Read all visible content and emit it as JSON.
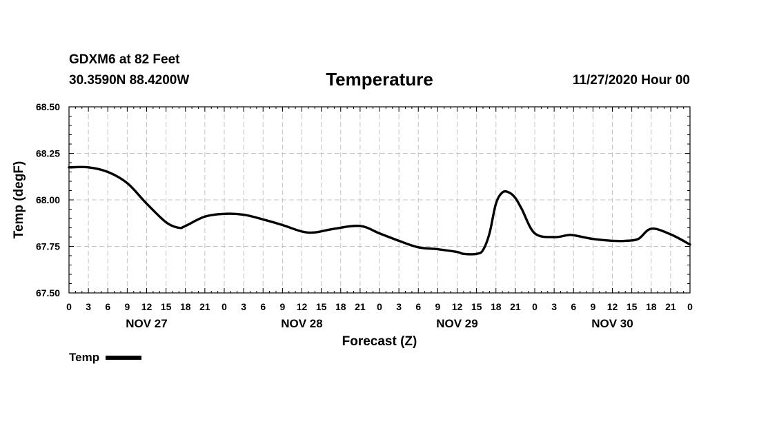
{
  "header": {
    "station": "GDXM6 at 82 Feet",
    "coords": "30.3590N 88.4200W",
    "title": "Temperature",
    "datetime": "11/27/2020 Hour 00"
  },
  "legend": {
    "label": "Temp",
    "color": "#000000"
  },
  "chart_data": {
    "type": "line",
    "title": "Temperature",
    "xlabel": "Forecast (Z)",
    "ylabel": "Temp (degF)",
    "ylim": [
      67.5,
      68.5
    ],
    "yticks": [
      "67.50",
      "67.75",
      "68.00",
      "68.25",
      "68.50"
    ],
    "ytick_values": [
      67.5,
      67.75,
      68.0,
      68.25,
      68.5
    ],
    "xlim_hours": [
      0,
      96
    ],
    "xticks": [
      "0",
      "3",
      "6",
      "9",
      "12",
      "15",
      "18",
      "21",
      "0",
      "3",
      "6",
      "9",
      "12",
      "15",
      "18",
      "21",
      "0",
      "3",
      "6",
      "9",
      "12",
      "15",
      "18",
      "21",
      "0",
      "3",
      "6",
      "9",
      "12",
      "15",
      "18",
      "21",
      "0"
    ],
    "day_labels": [
      {
        "label": "NOV 27",
        "hour": 12
      },
      {
        "label": "NOV 28",
        "hour": 36
      },
      {
        "label": "NOV 29",
        "hour": 60
      },
      {
        "label": "NOV 30",
        "hour": 84
      }
    ],
    "grid": true,
    "series": [
      {
        "name": "Temp",
        "color": "#000000",
        "x": [
          0,
          3,
          6,
          9,
          12,
          15,
          17,
          18,
          21,
          24,
          27,
          30,
          33,
          36,
          38,
          41,
          45,
          48,
          51,
          54,
          57,
          60,
          61,
          63,
          64,
          65,
          66,
          67,
          68,
          69,
          70,
          72,
          75,
          77,
          78,
          81,
          84,
          86,
          88,
          90,
          93,
          96
        ],
        "y": [
          68.175,
          68.175,
          68.15,
          68.09,
          67.98,
          67.88,
          67.85,
          67.86,
          67.91,
          67.925,
          67.92,
          67.895,
          67.865,
          67.83,
          67.825,
          67.845,
          67.86,
          67.82,
          67.78,
          67.745,
          67.735,
          67.72,
          67.71,
          67.71,
          67.73,
          67.82,
          67.98,
          68.04,
          68.04,
          68.01,
          67.95,
          67.82,
          67.8,
          67.81,
          67.81,
          67.79,
          67.78,
          67.78,
          67.79,
          67.845,
          67.815,
          67.76
        ]
      }
    ]
  }
}
